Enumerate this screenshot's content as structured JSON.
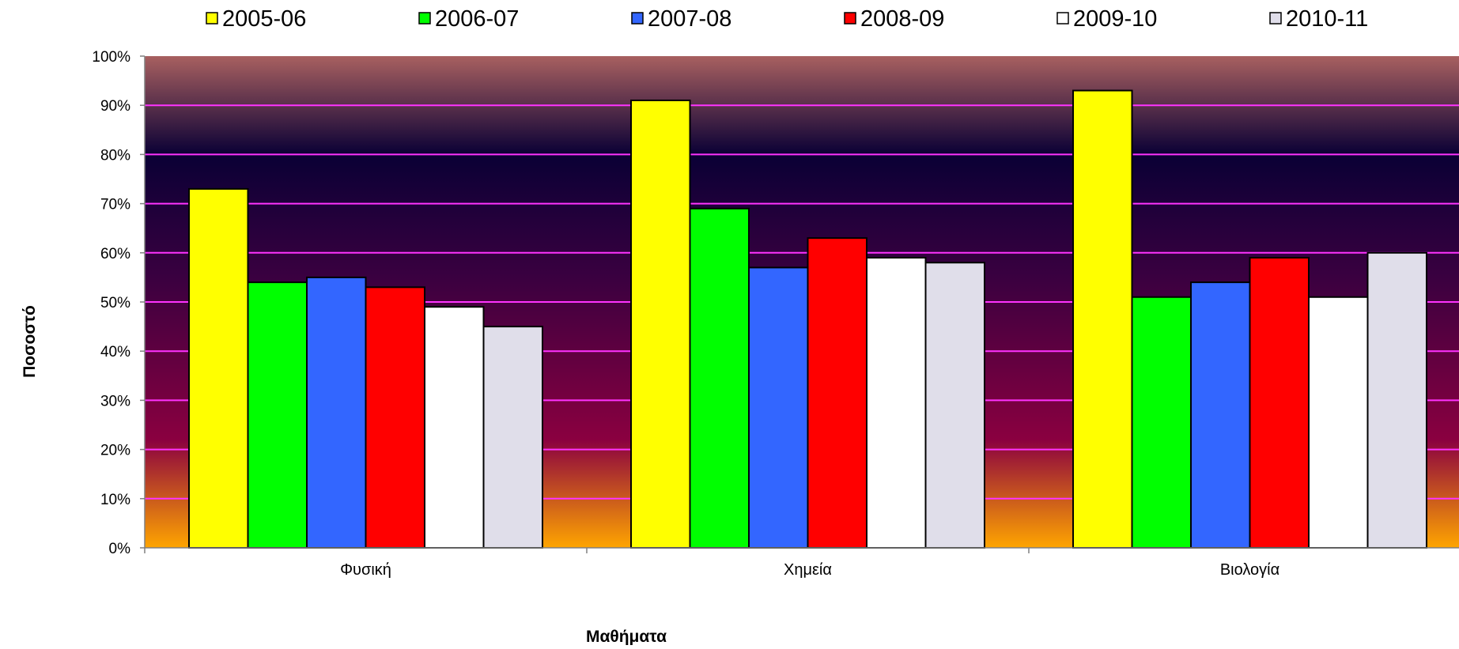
{
  "chart_data": {
    "type": "bar",
    "title": "",
    "xlabel": "Μαθήματα",
    "ylabel": "Ποσοστό",
    "categories": [
      "Φυσική",
      "Χημεία",
      "Βιολογία"
    ],
    "ylim": [
      0,
      100
    ],
    "yticks": [
      "0%",
      "10%",
      "20%",
      "30%",
      "40%",
      "50%",
      "60%",
      "70%",
      "80%",
      "90%",
      "100%"
    ],
    "grid": true,
    "legend_position": "top",
    "series": [
      {
        "name": "2005-06",
        "color": "#ffff00",
        "values": [
          73,
          91,
          93
        ]
      },
      {
        "name": "2006-07",
        "color": "#00ff00",
        "values": [
          54,
          69,
          51
        ]
      },
      {
        "name": "2007-08",
        "color": "#3366ff",
        "values": [
          55,
          57,
          54
        ]
      },
      {
        "name": "2008-09",
        "color": "#ff0000",
        "values": [
          53,
          63,
          59
        ]
      },
      {
        "name": "2009-10",
        "color": "#ffffff",
        "values": [
          49,
          59,
          51
        ]
      },
      {
        "name": "2010-11",
        "color": "#e0deea",
        "values": [
          45,
          58,
          60
        ]
      }
    ],
    "gridline_color": "#ff33ff",
    "background_gradient": [
      "#a86060",
      "#0a0035",
      "#3a0040",
      "#8a0040",
      "#ffa500"
    ]
  }
}
